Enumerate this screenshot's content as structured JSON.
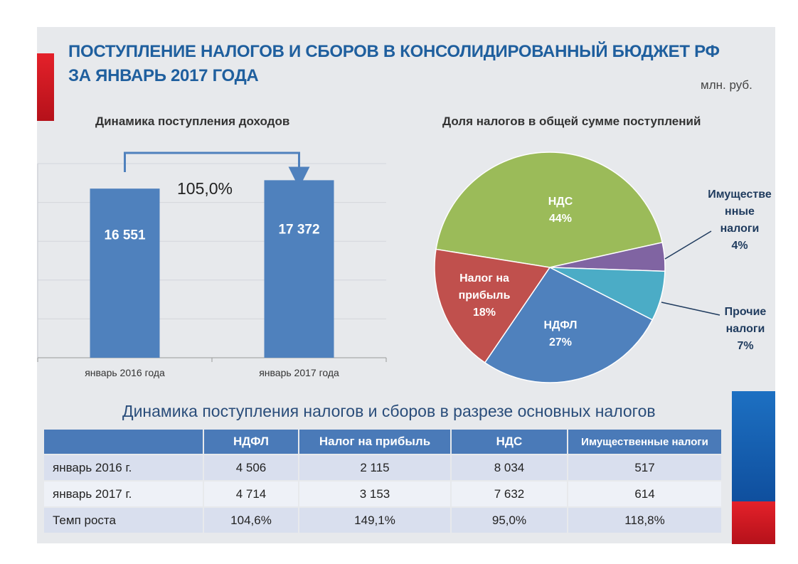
{
  "slide": {
    "title_line1": "ПОСТУПЛЕНИЕ НАЛОГОВ  И СБОРОВ В КОНСОЛИДИРОВАННЫЙ БЮДЖЕТ РФ",
    "title_line2": "ЗА ЯНВАРЬ  2017 ГОДА",
    "units": "млн. руб.",
    "colors": {
      "title": "#1f5f9e",
      "bar": "#4f81bd"
    }
  },
  "chart_data": [
    {
      "type": "bar",
      "title": "Динамика поступления доходов",
      "categories": [
        "январь 2016 года",
        "январь 2017 года"
      ],
      "values": [
        16551,
        17372
      ],
      "value_labels": [
        "16 551",
        "17 372"
      ],
      "growth_label": "105,0%",
      "ylim": [
        0,
        19000
      ],
      "grid": true,
      "xlabel": "",
      "ylabel": ""
    },
    {
      "type": "pie",
      "title": "Доля налогов в общей сумме поступлений",
      "slices": [
        {
          "name": "НДС",
          "lines": [
            "НДС",
            "44%"
          ],
          "value": 44,
          "color": "#9bbb59"
        },
        {
          "name": "Имущественные налоги",
          "lines": [
            "Имуществе",
            "нные",
            "налоги",
            "4%"
          ],
          "value": 4,
          "color": "#8064a2"
        },
        {
          "name": "Прочие налоги",
          "lines": [
            "Прочие",
            "налоги",
            "7%"
          ],
          "value": 7,
          "color": "#4bacc6"
        },
        {
          "name": "НДФЛ",
          "lines": [
            "НДФЛ",
            "27%"
          ],
          "value": 27,
          "color": "#4f81bd"
        },
        {
          "name": "Налог на прибыль",
          "lines": [
            "Налог на",
            "прибыль",
            "18%"
          ],
          "value": 18,
          "color": "#c0504d"
        }
      ]
    },
    {
      "type": "table",
      "title": "Динамика поступления налогов и сборов  в разрезе основных налогов",
      "columns": [
        "",
        "НДФЛ",
        "Налог на прибыль",
        "НДС",
        "Имущественные налоги"
      ],
      "rows": [
        [
          "январь 2016 г.",
          "4 506",
          "2 115",
          "8 034",
          "517"
        ],
        [
          "январь 2017 г.",
          "4 714",
          "3 153",
          "7 632",
          "614"
        ],
        [
          "Темп роста",
          "104,6%",
          "149,1%",
          "95,0%",
          "118,8%"
        ]
      ]
    }
  ]
}
